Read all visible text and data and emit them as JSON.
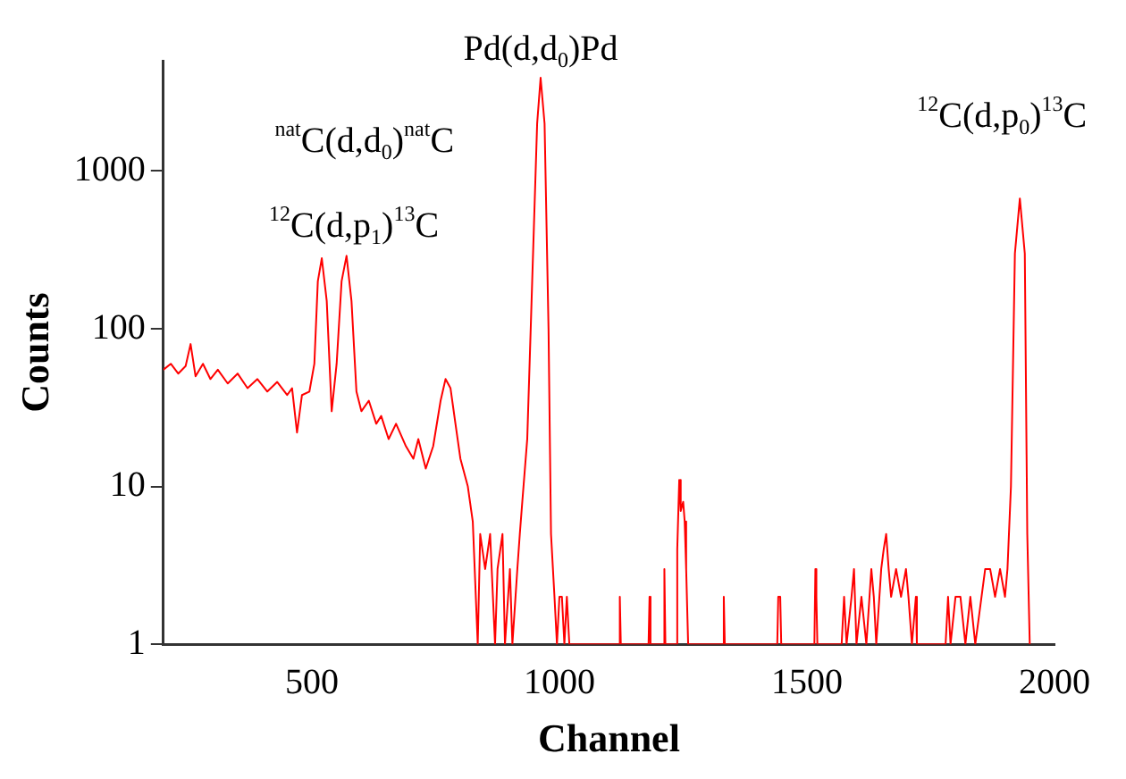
{
  "chart_data": {
    "type": "line",
    "xlabel": "Channel",
    "ylabel": "Counts",
    "color": "#ff0000",
    "marker": "none",
    "log": "y",
    "xlim": [
      200,
      2000
    ],
    "xticks": [
      500,
      1000,
      1500,
      2000
    ],
    "ylim": [
      1,
      5000
    ],
    "yticks": [
      1,
      10,
      100,
      1000
    ],
    "annotations": [
      {
        "text": "$^{12}$C(d,p$_{1}$)$^{13}$C",
        "x": 520,
        "y": 280
      },
      {
        "text": "$^{nat}$C(d,d$_{0}$)$^{nat}$C",
        "x": 570,
        "y": 290
      },
      {
        "text": "Pd(d,d$_{0}$)Pd",
        "x": 962,
        "y": 3900
      },
      {
        "text": "$^{12}$C(d,p$_{0}$)$^{13}$C",
        "x": 1930,
        "y": 670
      }
    ],
    "x": [
      200,
      215,
      230,
      245,
      255,
      265,
      280,
      295,
      310,
      330,
      350,
      370,
      390,
      410,
      430,
      450,
      460,
      470,
      480,
      495,
      505,
      512,
      520,
      530,
      540,
      550,
      560,
      570,
      580,
      590,
      600,
      615,
      630,
      640,
      655,
      670,
      690,
      705,
      715,
      730,
      745,
      760,
      770,
      780,
      790,
      800,
      815,
      825,
      835,
      840,
      850,
      860,
      870,
      875,
      885,
      890,
      900,
      905,
      915,
      920,
      925,
      935,
      945,
      955,
      962,
      970,
      978,
      983,
      990,
      995,
      1000,
      1005,
      1010,
      1015,
      1020,
      1120,
      1122,
      1124,
      1180,
      1182,
      1184,
      1210,
      1212,
      1214,
      1235,
      1238,
      1242,
      1245,
      1250,
      1253,
      1256,
      1260,
      1330,
      1332,
      1334,
      1440,
      1442,
      1446,
      1448,
      1515,
      1517,
      1519,
      1521,
      1570,
      1575,
      1580,
      1590,
      1595,
      1600,
      1610,
      1620,
      1630,
      1635,
      1640,
      1650,
      1655,
      1660,
      1665,
      1670,
      1680,
      1690,
      1700,
      1705,
      1712,
      1720,
      1722,
      1780,
      1785,
      1790,
      1800,
      1810,
      1820,
      1830,
      1840,
      1860,
      1870,
      1880,
      1890,
      1900,
      1905,
      1912,
      1920,
      1930,
      1940,
      1945,
      1950
    ],
    "values": [
      55,
      60,
      52,
      58,
      80,
      50,
      60,
      48,
      55,
      45,
      52,
      42,
      48,
      40,
      46,
      38,
      42,
      22,
      38,
      40,
      60,
      200,
      280,
      150,
      30,
      60,
      200,
      290,
      150,
      40,
      30,
      35,
      25,
      28,
      20,
      25,
      18,
      15,
      20,
      13,
      18,
      35,
      48,
      42,
      25,
      15,
      10,
      6,
      1,
      5,
      3,
      5,
      1,
      3,
      5,
      1,
      3,
      1,
      3,
      5,
      8,
      20,
      200,
      2000,
      3900,
      2000,
      100,
      5,
      2,
      1,
      2,
      2,
      1,
      2,
      1,
      1,
      2,
      1,
      1,
      2,
      1,
      1,
      3,
      1,
      1,
      4,
      11,
      7,
      8,
      6,
      3,
      1,
      1,
      2,
      1,
      1,
      2,
      2,
      1,
      1,
      3,
      2,
      1,
      1,
      2,
      1,
      2,
      3,
      1,
      2,
      1,
      3,
      2,
      1,
      3,
      4,
      5,
      3,
      2,
      3,
      2,
      3,
      2,
      1,
      2,
      1,
      1,
      2,
      1,
      2,
      2,
      1,
      2,
      1,
      3,
      3,
      2,
      3,
      2,
      3,
      10,
      300,
      670,
      300,
      5,
      1
    ]
  }
}
